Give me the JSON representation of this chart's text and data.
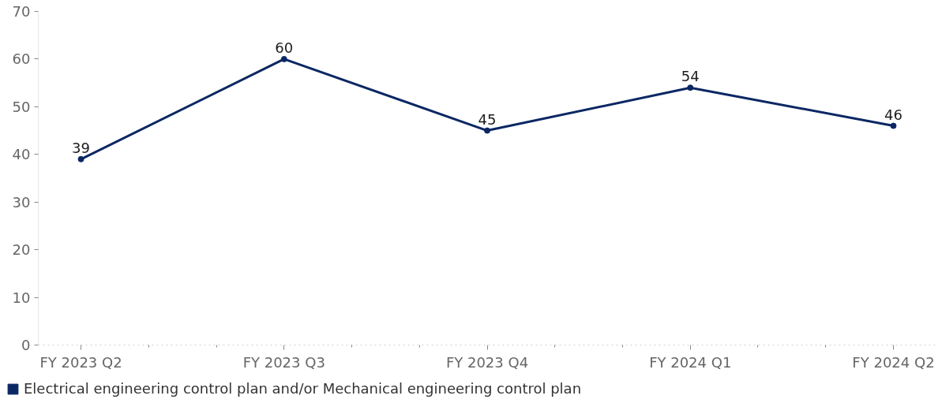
{
  "chart_data": {
    "type": "line",
    "categories": [
      "FY 2023 Q2",
      "FY 2023 Q3",
      "FY 2023 Q4",
      "FY 2024 Q1",
      "FY 2024 Q2"
    ],
    "series": [
      {
        "name": "Electrical engineering control plan and/or Mechanical engineering control plan",
        "color": "#0b2763",
        "values": [
          39,
          60,
          45,
          54,
          46
        ]
      }
    ],
    "ylim": [
      0,
      70
    ],
    "yticks": [
      0,
      10,
      20,
      30,
      40,
      50,
      60,
      70
    ],
    "grid": false,
    "legend": "bottom",
    "marker": "circle",
    "line_style": "solid",
    "data_labels": true
  }
}
